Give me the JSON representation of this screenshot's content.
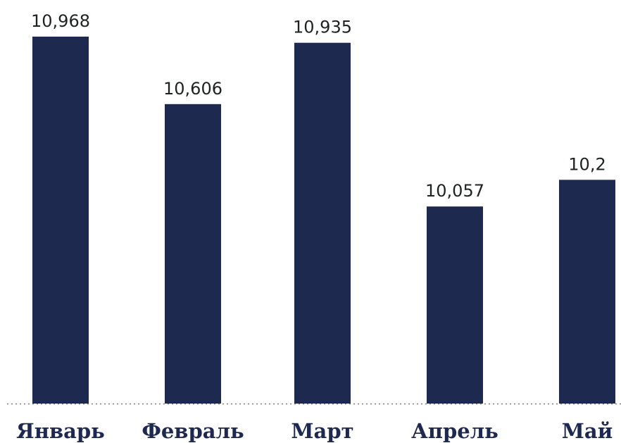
{
  "chart_data": {
    "type": "bar",
    "categories": [
      "Январь",
      "Февраль",
      "Март",
      "Апрель",
      "Май"
    ],
    "values": [
      10.968,
      10.606,
      10.935,
      10.057,
      10.2
    ],
    "value_labels": [
      "10,968",
      "10,606",
      "10,935",
      "10,057",
      "10,2"
    ],
    "title": "",
    "xlabel": "",
    "ylabel": "",
    "ylim": [
      9.0,
      11.0
    ],
    "grid": false,
    "legend": "none",
    "bar_color": "#1e294f",
    "baseline_style": "dotted"
  }
}
